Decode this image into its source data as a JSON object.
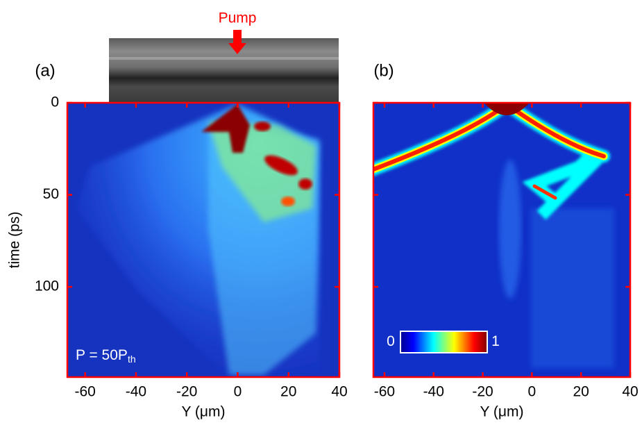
{
  "chart_data": [
    {
      "type": "heatmap",
      "panel_label": "(a)",
      "xlabel": "Y (μm)",
      "ylabel": "time (ps)",
      "xlim": [
        -67,
        40
      ],
      "xticks": [
        -60,
        -40,
        -20,
        0,
        20,
        40
      ],
      "ylim": [
        0,
        149
      ],
      "y_inverted": true,
      "yticks": [
        0,
        50,
        100
      ],
      "annotation": {
        "text": "P = 50P",
        "subscript": "th"
      },
      "inset_label": "Pump",
      "frame_color": "#ff0000"
    },
    {
      "type": "heatmap",
      "panel_label": "(b)",
      "xlabel": "Y (μm)",
      "xlim": [
        -64.5,
        40
      ],
      "xticks": [
        -60,
        -40,
        -20,
        0,
        20,
        40
      ],
      "ylim": [
        0,
        149
      ],
      "y_inverted": true,
      "yticks": [
        0,
        50,
        100
      ],
      "ytick_labels": false,
      "colorbar": {
        "ticks": [
          0,
          1
        ],
        "colormap": "jet"
      },
      "frame_color": "#ff0000"
    }
  ]
}
